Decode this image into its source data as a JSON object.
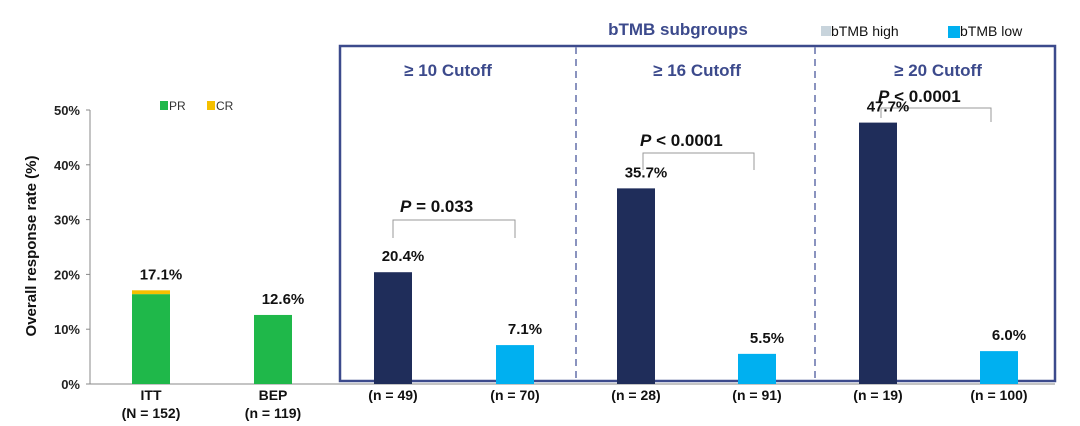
{
  "chart_data": {
    "type": "bar",
    "ylabel": "Overall response rate (%)",
    "ylim": [
      0,
      50
    ],
    "yticks": [
      "0%",
      "10%",
      "20%",
      "30%",
      "40%",
      "50%"
    ],
    "grid": false,
    "legend_pr_cr": {
      "pr": "PR",
      "cr": "CR"
    },
    "legend_btmb": {
      "title": "bTMB subgroups",
      "high": "bTMB high",
      "low": "bTMB low"
    },
    "colors": {
      "pr": "#1fb84a",
      "cr": "#f5c000",
      "high": "#1f2d5a",
      "low": "#00b0f0",
      "frame": "#3c4a8c",
      "cutoff_text": "#3c4a8c"
    },
    "bars": [
      {
        "cat1": "ITT",
        "cat2": "(N = 152)",
        "label": "17.1%",
        "pr": 16.4,
        "cr": 0.7,
        "kind": "stack"
      },
      {
        "cat1": "BEP",
        "cat2": "(n = 119)",
        "label": "12.6%",
        "value": 12.6,
        "kind": "pr"
      },
      {
        "cat1": "(n = 49)",
        "cat2": "",
        "label": "20.4%",
        "value": 20.4,
        "kind": "high"
      },
      {
        "cat1": "(n = 70)",
        "cat2": "",
        "label": "7.1%",
        "value": 7.1,
        "kind": "low"
      },
      {
        "cat1": "(n = 28)",
        "cat2": "",
        "label": "35.7%",
        "value": 35.7,
        "kind": "high"
      },
      {
        "cat1": "(n = 91)",
        "cat2": "",
        "label": "5.5%",
        "value": 5.5,
        "kind": "low"
      },
      {
        "cat1": "(n = 19)",
        "cat2": "",
        "label": "47.7%",
        "value": 47.7,
        "kind": "high"
      },
      {
        "cat1": "(n = 100)",
        "cat2": "",
        "label": "6.0%",
        "value": 6.0,
        "kind": "low"
      }
    ],
    "groups": [
      {
        "cutoff": "≥ 10 Cutoff",
        "p_italic": "P",
        "p_rest": " = 0.033"
      },
      {
        "cutoff": "≥ 16 Cutoff",
        "p_italic": "P",
        "p_rest": " < 0.0001"
      },
      {
        "cutoff": "≥ 20 Cutoff",
        "p_italic": "P",
        "p_rest": " < 0.0001"
      }
    ]
  }
}
